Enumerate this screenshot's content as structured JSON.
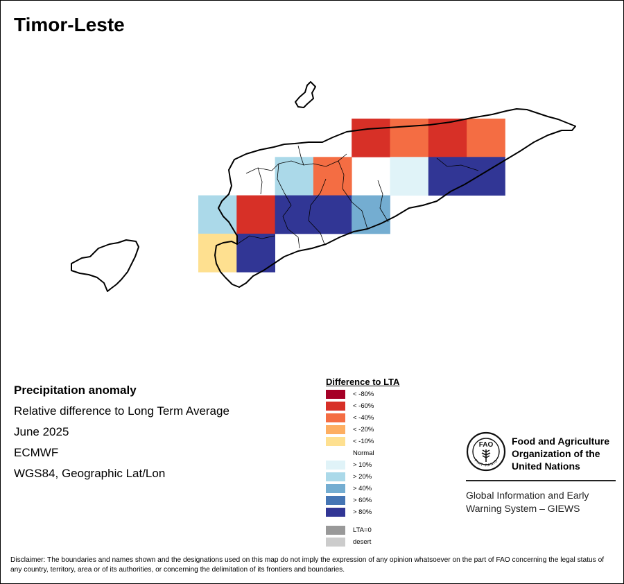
{
  "map": {
    "title": "Timor-Leste",
    "info_lines": [
      "Precipitation anomaly",
      "Relative difference to Long Term Average",
      "June 2025",
      "ECMWF",
      "WGS84, Geographic Lat/Lon"
    ],
    "anomaly_grid": [
      {
        "row": 0,
        "col": 4,
        "class": "< -60%"
      },
      {
        "row": 0,
        "col": 5,
        "class": "< -40%"
      },
      {
        "row": 0,
        "col": 6,
        "class": "< -60%"
      },
      {
        "row": 0,
        "col": 7,
        "class": "< -40%"
      },
      {
        "row": 1,
        "col": 2,
        "class": "> 20%"
      },
      {
        "row": 1,
        "col": 3,
        "class": "< -40%"
      },
      {
        "row": 1,
        "col": 5,
        "class": "> 10%"
      },
      {
        "row": 1,
        "col": 6,
        "class": "> 80%"
      },
      {
        "row": 1,
        "col": 7,
        "class": "> 80%"
      },
      {
        "row": 2,
        "col": 0,
        "class": "> 20%"
      },
      {
        "row": 2,
        "col": 1,
        "class": "< -60%"
      },
      {
        "row": 2,
        "col": 2,
        "class": "> 80%"
      },
      {
        "row": 2,
        "col": 3,
        "class": "> 80%"
      },
      {
        "row": 2,
        "col": 4,
        "class": "> 40%"
      },
      {
        "row": 3,
        "col": 0,
        "class": "< -10%"
      },
      {
        "row": 3,
        "col": 1,
        "class": "> 80%"
      }
    ]
  },
  "legend": {
    "title": "Difference to LTA",
    "items": [
      {
        "label": "< -80%",
        "color": "#a50026"
      },
      {
        "label": "< -60%",
        "color": "#d73027"
      },
      {
        "label": "< -40%",
        "color": "#f46d43"
      },
      {
        "label": "< -20%",
        "color": "#fdae61"
      },
      {
        "label": "< -10%",
        "color": "#fee090"
      },
      {
        "label": "Normal",
        "color": "#ffffff"
      },
      {
        "label": "> 10%",
        "color": "#e0f3f8"
      },
      {
        "label": "> 20%",
        "color": "#abd9e9"
      },
      {
        "label": "> 40%",
        "color": "#74add1"
      },
      {
        "label": "> 60%",
        "color": "#4575b4"
      },
      {
        "label": "> 80%",
        "color": "#313695"
      }
    ],
    "extra_items": [
      {
        "label": "LTA=0",
        "color": "#999999"
      },
      {
        "label": "desert",
        "color": "#cccccc"
      }
    ]
  },
  "fao": {
    "logo_text": "FAO",
    "logo_motto": "FIAT PANIS",
    "name_lines": [
      "Food and Agriculture",
      "Organization of the",
      "United Nations"
    ],
    "giews_lines": [
      "Global Information and Early",
      "Warning System – GIEWS"
    ]
  },
  "disclaimer": "Disclaimer: The boundaries and names shown and the designations used on this map do not imply the expression of any opinion whatsoever on the part of FAO concerning the legal status of any country, territory, area or of its authorities, or concerning the delimitation of its frontiers and boundaries."
}
